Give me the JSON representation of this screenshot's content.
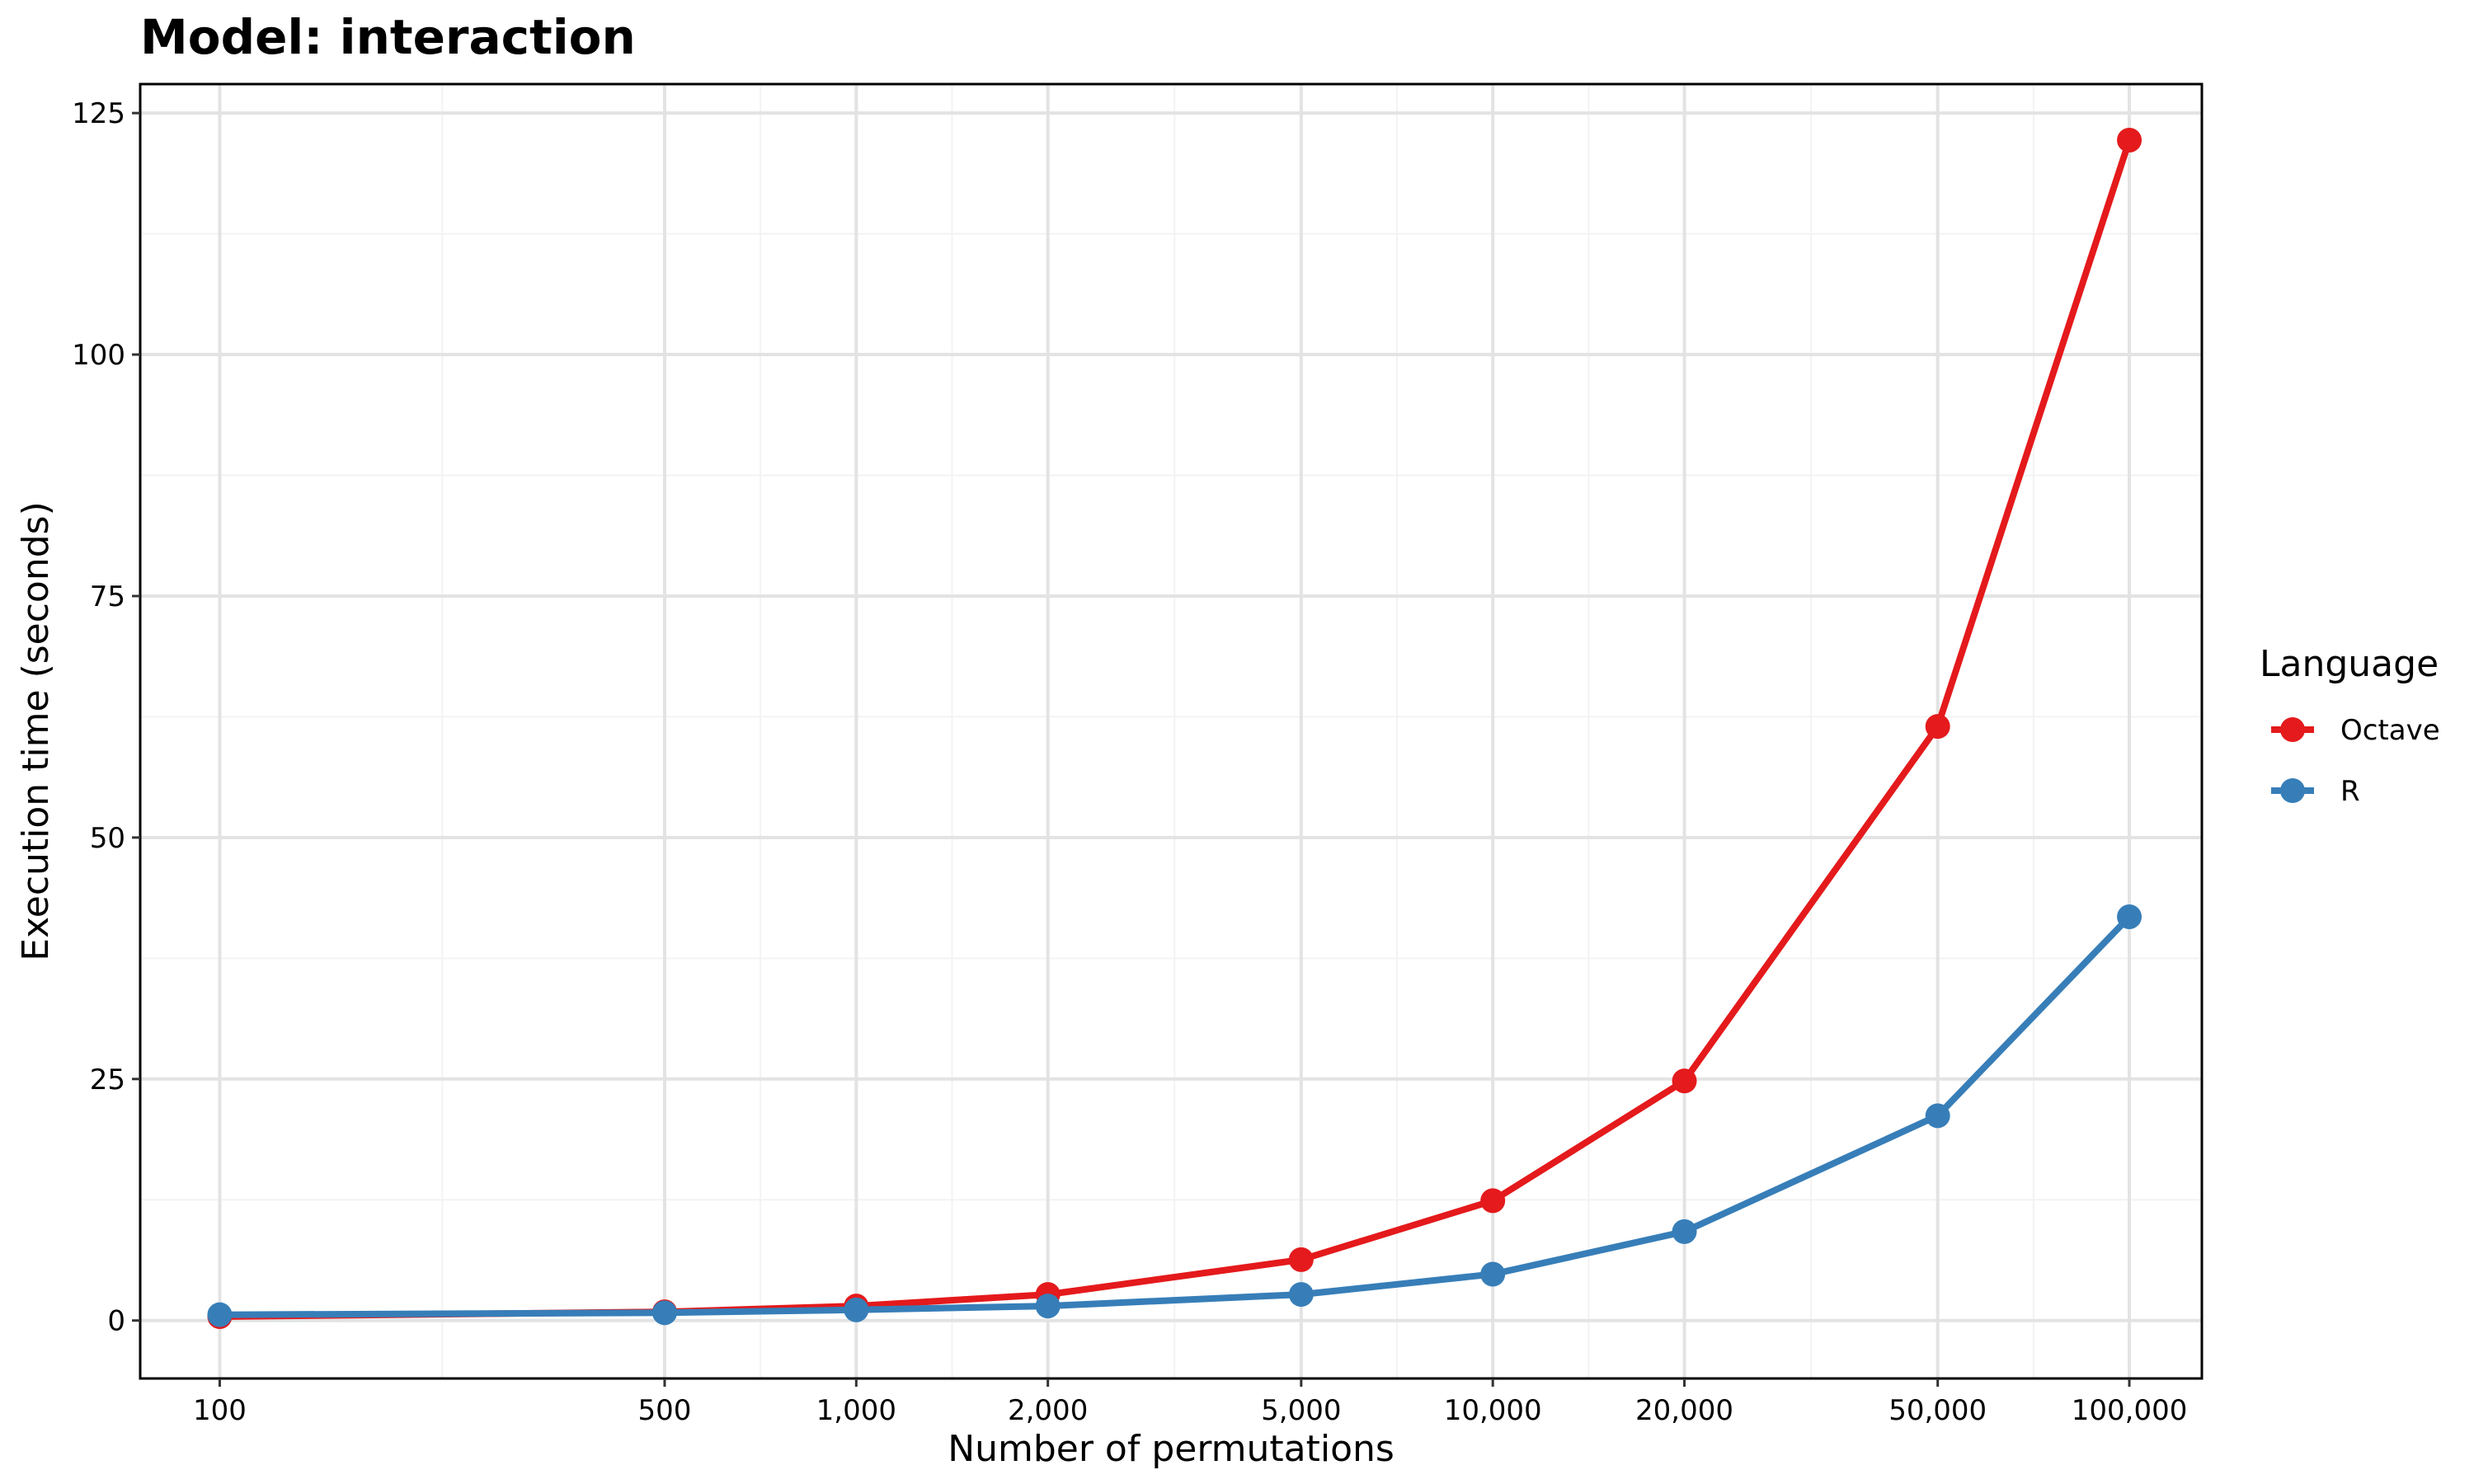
{
  "chart_data": {
    "type": "line",
    "title": "Model: interaction",
    "xlabel": "Number of permutations",
    "ylabel": "Execution time (seconds)",
    "x_scale": "log10",
    "x": [
      100,
      500,
      1000,
      2000,
      5000,
      10000,
      20000,
      50000,
      100000
    ],
    "x_tick_labels": [
      "100",
      "500",
      "1,000",
      "2,000",
      "5,000",
      "10,000",
      "20,000",
      "50,000",
      "100,000"
    ],
    "xlim": [
      75,
      130000
    ],
    "ylim": [
      -6,
      128
    ],
    "y_ticks": [
      0,
      25,
      50,
      75,
      100,
      125
    ],
    "y_tick_labels": [
      "0",
      "25",
      "50",
      "75",
      "100",
      "125"
    ],
    "grid": true,
    "legend_title": "Language",
    "legend_position": "right",
    "series": [
      {
        "name": "Octave",
        "color": "#e41a1c",
        "values": [
          0.4,
          0.9,
          1.5,
          2.7,
          6.3,
          12.4,
          24.8,
          61.5,
          122.2
        ]
      },
      {
        "name": "R",
        "color": "#377eb8",
        "values": [
          0.6,
          0.8,
          1.1,
          1.5,
          2.7,
          4.8,
          9.2,
          21.2,
          41.8
        ]
      }
    ]
  }
}
